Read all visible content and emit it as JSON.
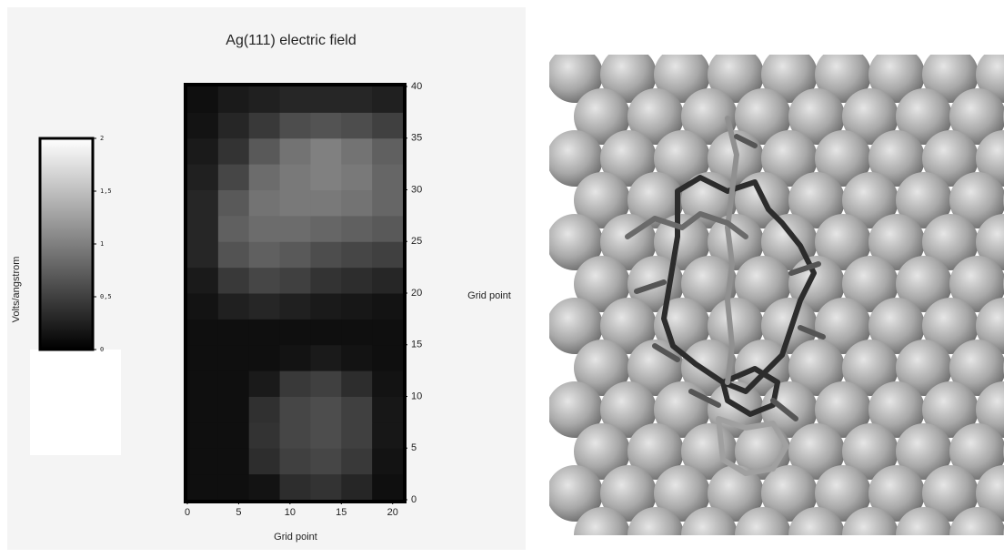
{
  "chart_data": {
    "type": "heatmap",
    "title": "Ag(111) electric field",
    "xlabel": "Grid point",
    "ylabel": "Grid point",
    "colorbar_label": "Volts/angstrom",
    "xbins": [
      0,
      3,
      6,
      9,
      12,
      15,
      18,
      21
    ],
    "ybins": [
      0,
      2.5,
      5,
      7.5,
      10,
      12.5,
      15,
      17.5,
      20,
      22.5,
      25,
      27.5,
      30,
      32.5,
      35,
      37.5,
      40
    ],
    "values": [
      [
        0.12,
        0.12,
        0.15,
        0.35,
        0.4,
        0.3,
        0.12
      ],
      [
        0.12,
        0.12,
        0.35,
        0.5,
        0.55,
        0.45,
        0.15
      ],
      [
        0.12,
        0.12,
        0.4,
        0.55,
        0.6,
        0.5,
        0.18
      ],
      [
        0.12,
        0.12,
        0.38,
        0.55,
        0.6,
        0.5,
        0.18
      ],
      [
        0.12,
        0.12,
        0.2,
        0.45,
        0.5,
        0.35,
        0.15
      ],
      [
        0.12,
        0.12,
        0.12,
        0.15,
        0.2,
        0.15,
        0.12
      ],
      [
        0.12,
        0.12,
        0.12,
        0.12,
        0.12,
        0.12,
        0.12
      ],
      [
        0.15,
        0.25,
        0.3,
        0.25,
        0.2,
        0.18,
        0.15
      ],
      [
        0.2,
        0.45,
        0.55,
        0.5,
        0.4,
        0.35,
        0.3
      ],
      [
        0.3,
        0.65,
        0.75,
        0.7,
        0.6,
        0.55,
        0.5
      ],
      [
        0.3,
        0.75,
        0.85,
        0.85,
        0.8,
        0.75,
        0.7
      ],
      [
        0.3,
        0.7,
        0.9,
        0.95,
        0.95,
        0.9,
        0.8
      ],
      [
        0.25,
        0.55,
        0.85,
        0.95,
        1.0,
        0.95,
        0.8
      ],
      [
        0.2,
        0.4,
        0.7,
        0.9,
        1.0,
        0.9,
        0.75
      ],
      [
        0.15,
        0.3,
        0.45,
        0.6,
        0.65,
        0.6,
        0.5
      ],
      [
        0.12,
        0.2,
        0.25,
        0.3,
        0.3,
        0.3,
        0.25
      ]
    ],
    "xlim": [
      0,
      21
    ],
    "ylim": [
      0,
      40
    ],
    "xticks": [
      0,
      5,
      10,
      15,
      20
    ],
    "yticks": [
      0,
      5,
      10,
      15,
      20,
      25,
      30,
      35,
      40
    ],
    "clim": [
      0,
      2
    ],
    "cticks": [
      0,
      {
        "value": 0.5,
        "label": "0,5"
      },
      1,
      {
        "value": 1.5,
        "label": "1,5"
      },
      2
    ]
  }
}
